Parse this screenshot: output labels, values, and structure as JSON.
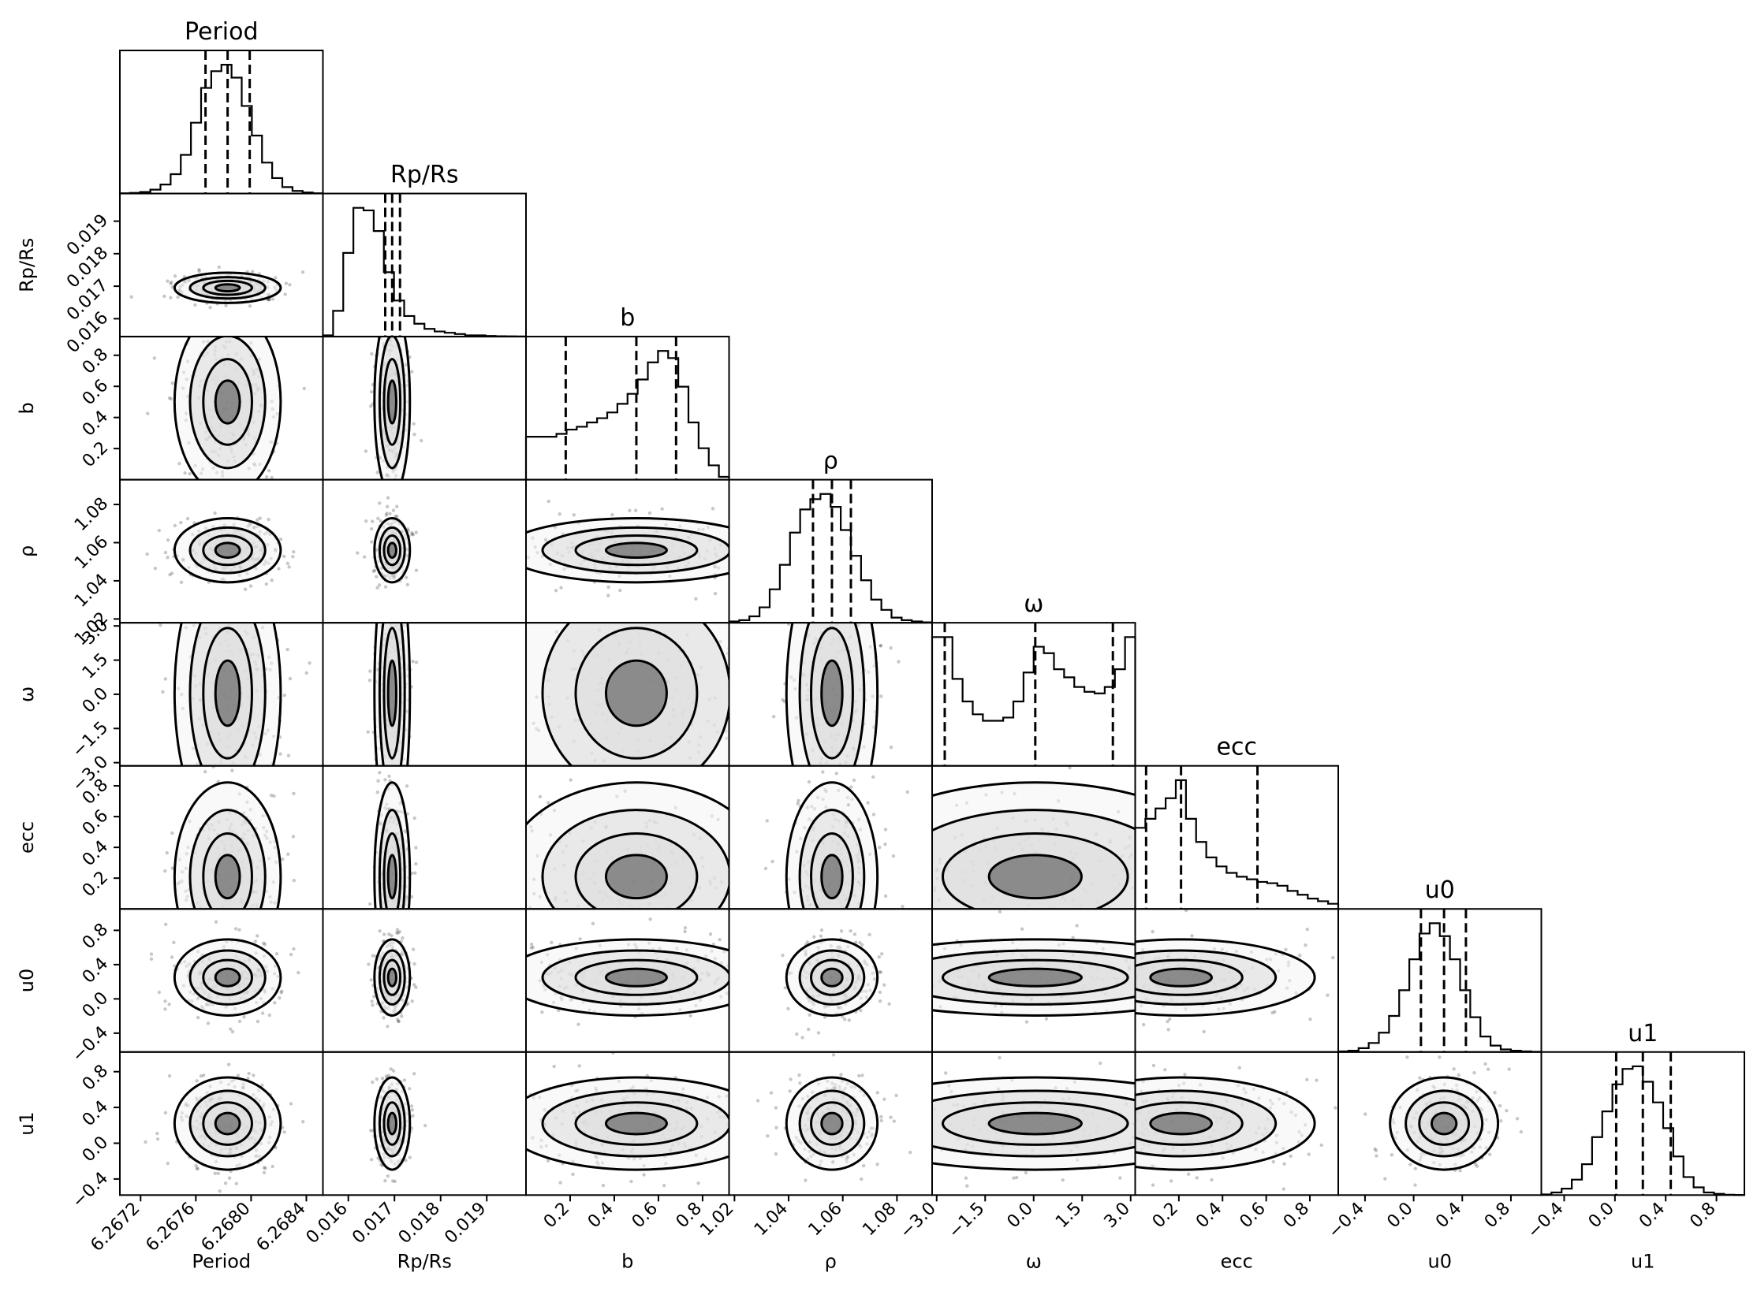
{
  "chart_data": {
    "type": "corner",
    "parameters": [
      "Period",
      "Rp/Rs",
      "b",
      "ρ",
      "ω",
      "ecc",
      "u0",
      "u1"
    ],
    "titles": [
      "Period",
      "Rp/Rs",
      "b",
      "ρ",
      "ω",
      "ecc",
      "u0",
      "u1"
    ],
    "axis_labels": [
      "Period",
      "Rp/Rs",
      "b",
      "ρ",
      "ω",
      "ecc",
      "u0",
      "u1"
    ],
    "ranges": [
      [
        6.26705,
        6.26852
      ],
      [
        0.01545,
        0.01985
      ],
      [
        0.0,
        0.92
      ],
      [
        1.018,
        1.093
      ],
      [
        -3.14,
        3.14
      ],
      [
        0.0,
        0.93
      ],
      [
        -0.62,
        1.05
      ],
      [
        -0.58,
        1.02
      ]
    ],
    "ticks": [
      [
        "6.2672",
        "6.2676",
        "6.2680",
        "6.2684"
      ],
      [
        "0.016",
        "0.017",
        "0.018",
        "0.019"
      ],
      [
        "0.2",
        "0.4",
        "0.6",
        "0.8"
      ],
      [
        "1.02",
        "1.04",
        "1.06",
        "1.08"
      ],
      [
        "−3.0",
        "−1.5",
        "0.0",
        "1.5",
        "3.0"
      ],
      [
        "0.2",
        "0.4",
        "0.6",
        "0.8"
      ],
      [
        "−0.4",
        "0.0",
        "0.4",
        "0.8"
      ],
      [
        "−0.4",
        "0.0",
        "0.4",
        "0.8"
      ]
    ],
    "tick_values": [
      [
        6.2672,
        6.2676,
        6.268,
        6.2684
      ],
      [
        0.016,
        0.017,
        0.018,
        0.019
      ],
      [
        0.2,
        0.4,
        0.6,
        0.8
      ],
      [
        1.02,
        1.04,
        1.06,
        1.08
      ],
      [
        -3.0,
        -1.5,
        0.0,
        1.5,
        3.0
      ],
      [
        0.2,
        0.4,
        0.6,
        0.8
      ],
      [
        -0.4,
        0.0,
        0.4,
        0.8
      ],
      [
        -0.4,
        0.0,
        0.4,
        0.8
      ]
    ],
    "quantiles": [
      [
        6.26767,
        6.26783,
        6.26799
      ],
      [
        0.0168,
        0.01695,
        0.01712
      ],
      [
        0.18,
        0.5,
        0.68
      ],
      [
        1.049,
        1.056,
        1.063
      ],
      [
        -2.75,
        0.05,
        2.45
      ],
      [
        0.05,
        0.21,
        0.56
      ],
      [
        0.06,
        0.25,
        0.43
      ],
      [
        0.01,
        0.22,
        0.44
      ]
    ],
    "histograms": [
      [
        0.2,
        0.5,
        1.2,
        3,
        7,
        15,
        30,
        55,
        82,
        95,
        100,
        90,
        68,
        45,
        24,
        12,
        5,
        2,
        0.8,
        0.2
      ],
      [
        1,
        20,
        65,
        100,
        98,
        82,
        50,
        28,
        16,
        10,
        6,
        4,
        3,
        2,
        1,
        1,
        0.5,
        0.3,
        0.2,
        0.1
      ],
      [
        30,
        30,
        30,
        32,
        35,
        37,
        40,
        43,
        47,
        53,
        60,
        70,
        82,
        90,
        85,
        65,
        40,
        22,
        10,
        2
      ],
      [
        1,
        2,
        5,
        12,
        26,
        45,
        70,
        88,
        96,
        100,
        90,
        72,
        52,
        33,
        18,
        10,
        4,
        2,
        1,
        0.3
      ],
      [
        80,
        80,
        54,
        40,
        32,
        28,
        28,
        30,
        40,
        58,
        74,
        70,
        60,
        55,
        49,
        46,
        45,
        49,
        60,
        80
      ],
      [
        63,
        70,
        78,
        86,
        100,
        70,
        52,
        40,
        33,
        28,
        25,
        23,
        21,
        20,
        18,
        14,
        11,
        8,
        6,
        4
      ],
      [
        0.5,
        1,
        3,
        7,
        15,
        28,
        48,
        72,
        92,
        100,
        90,
        72,
        48,
        27,
        12,
        5,
        2,
        1,
        0.5,
        0.2
      ],
      [
        0.5,
        2,
        5,
        12,
        24,
        45,
        65,
        86,
        98,
        100,
        88,
        72,
        52,
        30,
        14,
        6,
        2,
        1,
        0.3,
        0.1
      ]
    ]
  }
}
